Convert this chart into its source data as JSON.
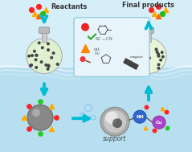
{
  "bg_color": "#d6eef7",
  "water_color": "#b8dff0",
  "reactants_label": "Reactants",
  "products_label": "Final products",
  "support_label": "support",
  "nh_label": "NH",
  "cu_label": "Cu",
  "magnet_label": "magnet",
  "arrow_color": "#00bcd4",
  "panel_bg": "#e8f4fb",
  "panel_border": "#90cce0"
}
